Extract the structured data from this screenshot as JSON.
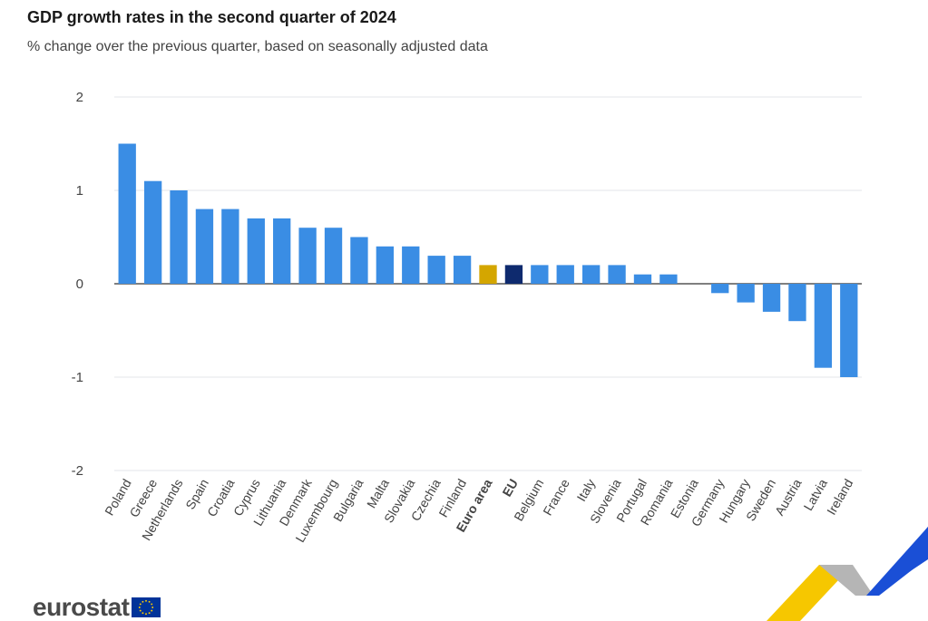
{
  "chart_data": {
    "type": "bar",
    "title": "GDP growth rates in the second quarter of 2024",
    "subtitle": "% change over the previous quarter, based on seasonally adjusted data",
    "categories": [
      "Poland",
      "Greece",
      "Netherlands",
      "Spain",
      "Croatia",
      "Cyprus",
      "Lithuania",
      "Denmark",
      "Luxembourg",
      "Bulgaria",
      "Malta",
      "Slovakia",
      "Czechia",
      "Finland",
      "Euro area",
      "EU",
      "Belgium",
      "France",
      "Italy",
      "Slovenia",
      "Portugal",
      "Romania",
      "Estonia",
      "Germany",
      "Hungary",
      "Sweden",
      "Austria",
      "Latvia",
      "Ireland"
    ],
    "values": [
      1.5,
      1.1,
      1.0,
      0.8,
      0.8,
      0.7,
      0.7,
      0.6,
      0.6,
      0.5,
      0.4,
      0.4,
      0.3,
      0.3,
      0.2,
      0.2,
      0.2,
      0.2,
      0.2,
      0.2,
      0.1,
      0.1,
      0.0,
      -0.1,
      -0.2,
      -0.3,
      -0.4,
      -0.9,
      -1.0
    ],
    "highlight": {
      "Euro area": "#d4a600",
      "EU": "#0e2a6e"
    },
    "bold_categories": [
      "Euro area",
      "EU"
    ],
    "bar_color": "#3a8de4",
    "ylim": [
      -2,
      2
    ],
    "yticks": [
      -2,
      -1,
      0,
      1,
      2
    ],
    "xlabel": "",
    "ylabel": "",
    "grid": true,
    "legend": "none"
  },
  "brand": {
    "logo_text": "eurostat",
    "colors": {
      "text": "#4a4a4a",
      "flag_blue": "#003399",
      "flag_star": "#ffcc00",
      "accent_yellow": "#f6c700",
      "accent_blue": "#1a4fd6",
      "accent_grey": "#b5b5b5"
    }
  }
}
